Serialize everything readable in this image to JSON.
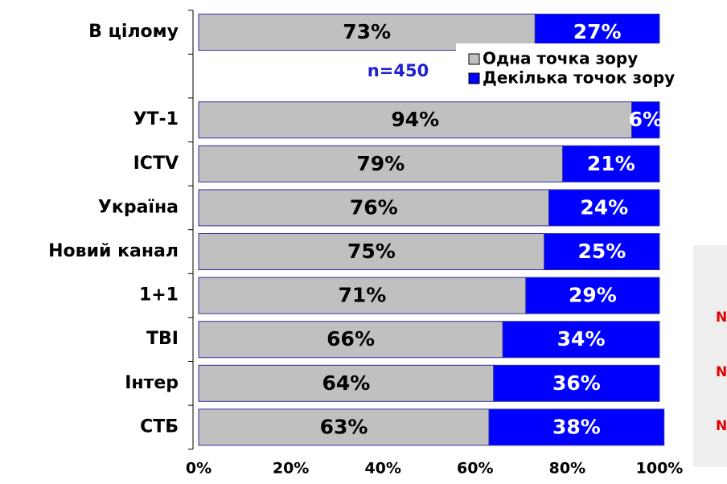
{
  "chart_data": {
    "type": "stacked_bar_horizontal",
    "categories": [
      "В цілому",
      null,
      "УТ-1",
      "ICTV",
      "Україна",
      "Новий канал",
      "1+1",
      "ТВІ",
      "Інтер",
      "СТБ"
    ],
    "series": [
      {
        "name": "Одна точка зору",
        "color": "#c0c0c0",
        "values": [
          73,
          null,
          94,
          79,
          76,
          75,
          71,
          66,
          64,
          63
        ],
        "value_labels": [
          "73%",
          null,
          "94%",
          "79%",
          "76%",
          "75%",
          "71%",
          "66%",
          "64%",
          "63%"
        ]
      },
      {
        "name": "Декілька точок зору",
        "color": "#0000ff",
        "values": [
          27,
          null,
          6,
          21,
          24,
          25,
          29,
          34,
          36,
          38
        ],
        "value_labels": [
          "27%",
          null,
          "6%",
          "21%",
          "24%",
          "25%",
          "29%",
          "34%",
          "36%",
          "38%"
        ]
      }
    ],
    "xlim": [
      0,
      100
    ],
    "xticks": [
      {
        "value": 0,
        "label": "0%"
      },
      {
        "value": 20,
        "label": "20%"
      },
      {
        "value": 40,
        "label": "40%"
      },
      {
        "value": 60,
        "label": "60%"
      },
      {
        "value": 80,
        "label": "80%"
      },
      {
        "value": 100,
        "label": "100%"
      }
    ],
    "annotations": [
      "n=450",
      "N",
      "N",
      "N"
    ],
    "legend": "top-right"
  }
}
